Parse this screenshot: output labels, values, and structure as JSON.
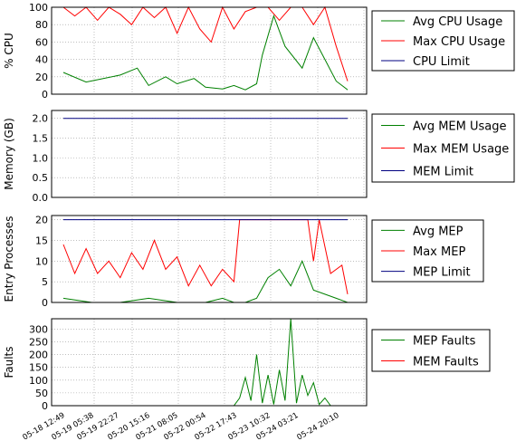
{
  "chart_data": [
    {
      "type": "line",
      "ylabel": "% CPU",
      "ylim": [
        0,
        100
      ],
      "yticks": [
        "0",
        "20",
        "40",
        "60",
        "80",
        "100"
      ],
      "ytick_values": [
        0,
        20,
        40,
        60,
        80,
        100
      ],
      "grid": true,
      "legend_position": "right",
      "series": [
        {
          "name": "Avg CPU Usage",
          "color": "#008000",
          "x": [
            0,
            8,
            14,
            20,
            26,
            30,
            36,
            40,
            46,
            50,
            56,
            60,
            64,
            68,
            70,
            74,
            78,
            84,
            88,
            92,
            96,
            100
          ],
          "y": [
            25,
            14,
            18,
            22,
            30,
            10,
            20,
            12,
            18,
            8,
            6,
            10,
            5,
            12,
            45,
            90,
            55,
            30,
            65,
            40,
            15,
            5
          ]
        },
        {
          "name": "Max CPU Usage",
          "color": "#ff0000",
          "x": [
            0,
            4,
            8,
            12,
            16,
            20,
            24,
            28,
            32,
            36,
            40,
            44,
            48,
            52,
            56,
            60,
            64,
            68,
            72,
            76,
            80,
            84,
            88,
            92,
            96,
            100
          ],
          "y": [
            100,
            90,
            100,
            85,
            100,
            92,
            80,
            100,
            88,
            100,
            70,
            100,
            75,
            60,
            100,
            75,
            95,
            100,
            100,
            85,
            100,
            100,
            80,
            100,
            55,
            15
          ]
        },
        {
          "name": "CPU Limit",
          "color": "#000080",
          "x": [
            0,
            100
          ],
          "y": [
            100,
            100
          ]
        }
      ]
    },
    {
      "type": "line",
      "ylabel": "Memory (GB)",
      "ylim": [
        0,
        2.2
      ],
      "yticks": [
        "0.0",
        "0.5",
        "1.0",
        "1.5",
        "2.0"
      ],
      "ytick_values": [
        0,
        0.5,
        1.0,
        1.5,
        2.0
      ],
      "grid": true,
      "legend_position": "right",
      "series": [
        {
          "name": "Avg MEM Usage",
          "color": "#008000",
          "x": [],
          "y": []
        },
        {
          "name": "Max MEM Usage",
          "color": "#ff0000",
          "x": [],
          "y": []
        },
        {
          "name": "MEM Limit",
          "color": "#000080",
          "x": [
            0,
            100
          ],
          "y": [
            2.0,
            2.0
          ]
        }
      ]
    },
    {
      "type": "line",
      "ylabel": "Entry Processes",
      "ylim": [
        0,
        21
      ],
      "yticks": [
        "0",
        "5",
        "10",
        "15",
        "20"
      ],
      "ytick_values": [
        0,
        5,
        10,
        15,
        20
      ],
      "grid": true,
      "legend_position": "right",
      "series": [
        {
          "name": "Avg MEP",
          "color": "#008000",
          "x": [
            0,
            10,
            20,
            30,
            40,
            50,
            56,
            60,
            64,
            68,
            72,
            76,
            80,
            84,
            88,
            92,
            96,
            100
          ],
          "y": [
            1,
            0,
            0,
            1,
            0,
            0,
            1,
            0,
            0,
            1,
            6,
            8,
            4,
            10,
            3,
            2,
            1,
            0
          ]
        },
        {
          "name": "Max MEP",
          "color": "#ff0000",
          "x": [
            0,
            4,
            8,
            12,
            16,
            20,
            24,
            28,
            32,
            36,
            40,
            44,
            48,
            52,
            56,
            60,
            62,
            64,
            66,
            70,
            74,
            78,
            82,
            86,
            88,
            90,
            94,
            98,
            100
          ],
          "y": [
            14,
            7,
            13,
            7,
            10,
            6,
            12,
            8,
            15,
            8,
            11,
            4,
            9,
            4,
            8,
            5,
            20,
            20,
            20,
            20,
            20,
            20,
            20,
            20,
            10,
            20,
            7,
            9,
            2
          ]
        },
        {
          "name": "MEP Limit",
          "color": "#000080",
          "x": [
            0,
            100
          ],
          "y": [
            20,
            20
          ]
        }
      ]
    },
    {
      "type": "line",
      "ylabel": "Faults",
      "ylim": [
        0,
        340
      ],
      "yticks": [
        "0",
        "50",
        "100",
        "150",
        "200",
        "250",
        "300"
      ],
      "ytick_values": [
        0,
        50,
        100,
        150,
        200,
        250,
        300
      ],
      "grid": true,
      "legend_position": "right",
      "x_tick_labels": [
        "05-18 12:49",
        "05-19 05:38",
        "05-19 22:27",
        "05-20 15:16",
        "05-21 08:05",
        "05-22 00:54",
        "05-22 17:43",
        "05-23 10:32",
        "05-24 03:21",
        "05-24 20:10"
      ],
      "series": [
        {
          "name": "MEP Faults",
          "color": "#008000",
          "x": [
            0,
            60,
            62,
            64,
            66,
            68,
            70,
            72,
            74,
            76,
            78,
            80,
            82,
            84,
            86,
            88,
            90,
            92,
            94,
            100
          ],
          "y": [
            0,
            0,
            30,
            110,
            20,
            200,
            10,
            120,
            5,
            140,
            20,
            340,
            10,
            120,
            40,
            90,
            5,
            30,
            0,
            0
          ]
        },
        {
          "name": "MEM Faults",
          "color": "#ff0000",
          "x": [
            0,
            100
          ],
          "y": [
            0,
            0
          ]
        }
      ]
    }
  ]
}
